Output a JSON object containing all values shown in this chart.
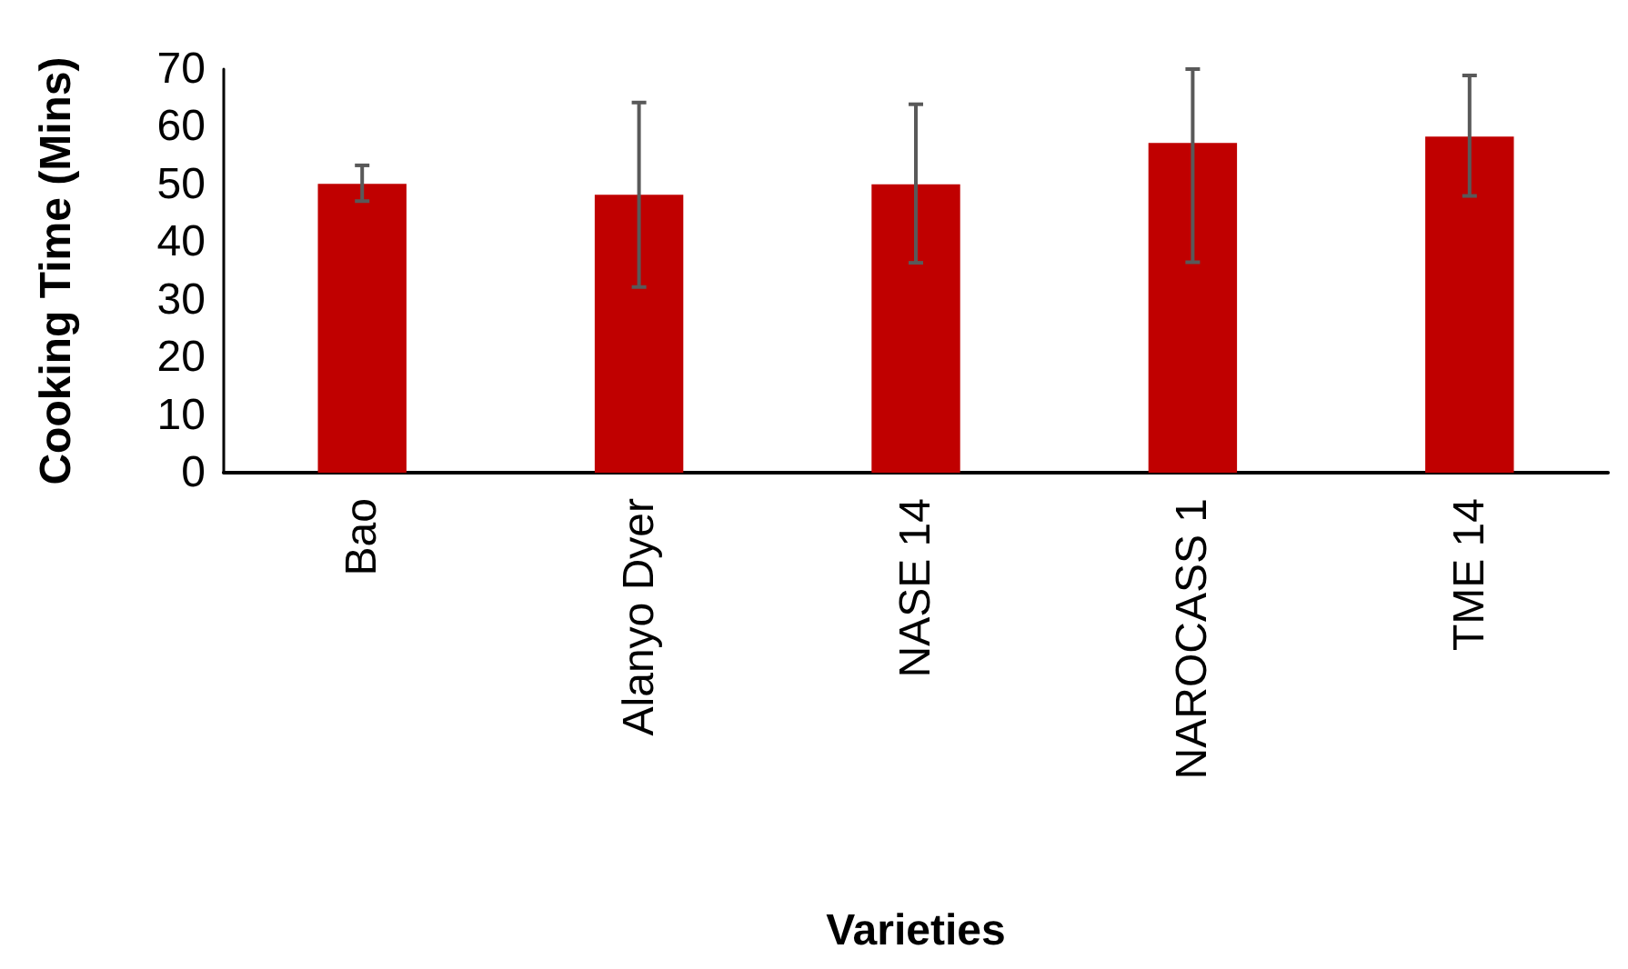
{
  "chart_data": {
    "type": "bar",
    "xlabel": "Varieties",
    "ylabel": "Cooking Time (Mins)",
    "categories": [
      "Bao",
      "Alanyo Dyer",
      "NASE 14",
      "NAROCASS 1",
      "TME 14"
    ],
    "values": [
      50.1,
      48.2,
      50,
      57.2,
      58.3
    ],
    "errors": [
      [
        47.1,
        53.3
      ],
      [
        32.2,
        64.2
      ],
      [
        36.4,
        63.9
      ],
      [
        36.5,
        70
      ],
      [
        48,
        68.9
      ]
    ],
    "color": "#c00000",
    "ylim": [
      0,
      70
    ],
    "yticks": [
      0,
      10,
      20,
      30,
      40,
      50,
      60,
      70
    ],
    "grid": false
  }
}
